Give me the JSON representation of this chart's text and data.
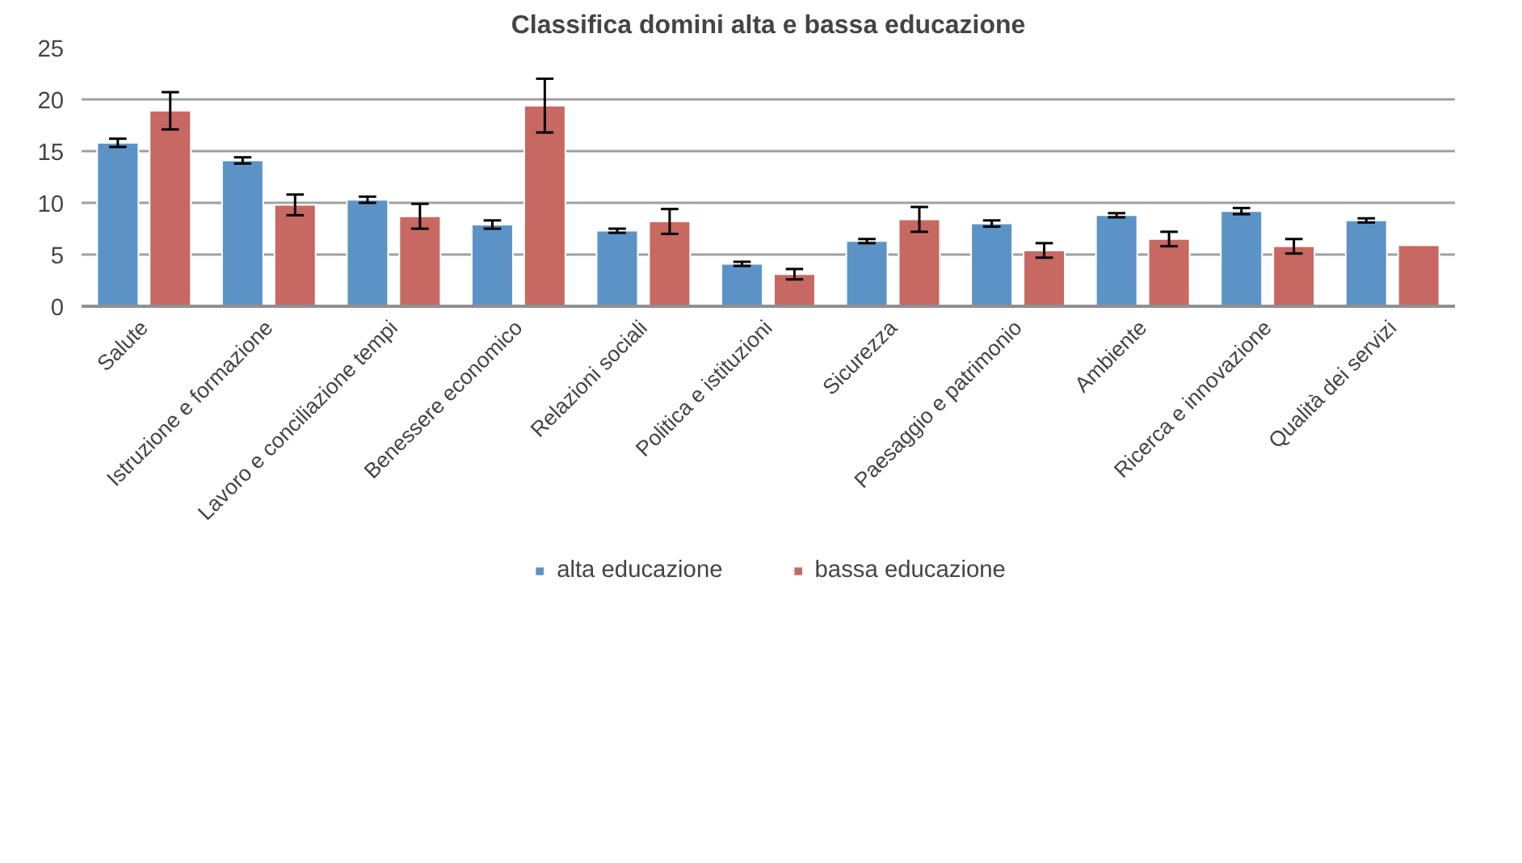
{
  "chart_data": {
    "type": "bar",
    "title": "Classifica domini alta e bassa educazione",
    "categories": [
      "Salute",
      "Istruzione e formazione",
      "Lavoro e conciliazione tempi",
      "Benessere economico",
      "Relazioni sociali",
      "Politica e istituzioni",
      "Sicurezza",
      "Paesaggio e patrimonio",
      "Ambiente",
      "Ricerca e innovazione",
      "Qualità dei servizi"
    ],
    "series": [
      {
        "name": "alta educazione",
        "color": "#5b93c6",
        "values": [
          15.8,
          14.1,
          10.3,
          7.9,
          7.3,
          4.1,
          6.3,
          8.0,
          8.8,
          9.2,
          8.3
        ],
        "errors": [
          0.4,
          0.3,
          0.3,
          0.4,
          0.2,
          0.2,
          0.2,
          0.3,
          0.2,
          0.3,
          0.2
        ]
      },
      {
        "name": "bassa educazione",
        "color": "#c86862",
        "values": [
          18.9,
          9.8,
          8.7,
          19.4,
          8.2,
          3.1,
          8.4,
          5.4,
          6.5,
          5.8,
          5.9
        ],
        "errors": [
          1.8,
          1.0,
          1.2,
          2.6,
          1.2,
          0.5,
          1.2,
          0.7,
          0.7,
          0.7,
          null
        ]
      }
    ],
    "ylim": [
      0,
      25
    ],
    "yticks": [
      0,
      5,
      10,
      15,
      20,
      25
    ],
    "grid": "y",
    "legend": "bottom"
  }
}
